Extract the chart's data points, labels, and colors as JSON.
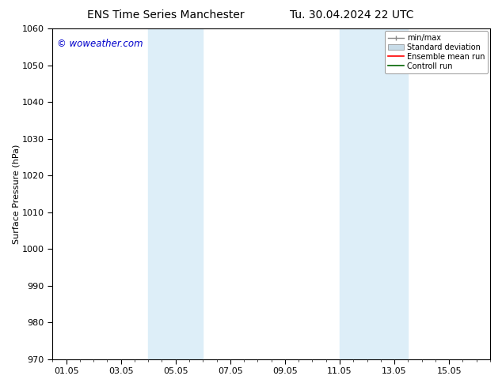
{
  "title_left": "ENS Time Series Manchester",
  "title_right": "Tu. 30.04.2024 22 UTC",
  "ylabel": "Surface Pressure (hPa)",
  "ylim": [
    970,
    1060
  ],
  "yticks": [
    970,
    980,
    990,
    1000,
    1010,
    1020,
    1030,
    1040,
    1050,
    1060
  ],
  "xtick_labels": [
    "01.05",
    "03.05",
    "05.05",
    "07.05",
    "09.05",
    "11.05",
    "13.05",
    "15.05"
  ],
  "xtick_positions": [
    0,
    2,
    4,
    6,
    8,
    10,
    12,
    14
  ],
  "xlim": [
    -0.5,
    15.5
  ],
  "shaded_regions": [
    {
      "x_start": 3.0,
      "x_end": 5.0,
      "color": "#ddeef8"
    },
    {
      "x_start": 10.0,
      "x_end": 12.5,
      "color": "#ddeef8"
    }
  ],
  "watermark_text": "© woweather.com",
  "watermark_color": "#0000cc",
  "legend_labels": [
    "min/max",
    "Standard deviation",
    "Ensemble mean run",
    "Controll run"
  ],
  "legend_line_colors": [
    "#aaaaaa",
    "#c8dce8",
    "#ff0000",
    "#008000"
  ],
  "background_color": "#ffffff",
  "plot_bg_color": "#ffffff",
  "title_fontsize": 10,
  "axis_label_fontsize": 8,
  "tick_fontsize": 8
}
